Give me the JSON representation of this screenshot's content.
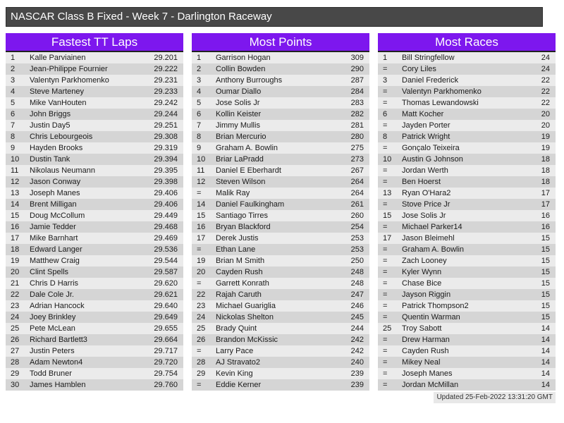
{
  "title": "NASCAR Class B Fixed - Week 7 - Darlington Raceway",
  "footer": {
    "updated": "Updated 25-Feb-2022 13:31:20 GMT"
  },
  "colors": {
    "title_bar": "#484848",
    "header_accent": "#7d17ee",
    "header_border": "#222222",
    "row_odd": "#ebebeb",
    "row_even": "#d5d5d5"
  },
  "tables": [
    {
      "title": "Fastest TT Laps",
      "columns": [
        "rank",
        "driver",
        "lap_time"
      ],
      "rows": [
        [
          "1",
          "Kalle Parviainen",
          "29.201"
        ],
        [
          "2",
          "Jean-Philippe Fournier",
          "29.222"
        ],
        [
          "3",
          "Valentyn Parkhomenko",
          "29.231"
        ],
        [
          "4",
          "Steve Marteney",
          "29.233"
        ],
        [
          "5",
          "Mike VanHouten",
          "29.242"
        ],
        [
          "6",
          "John Briggs",
          "29.244"
        ],
        [
          "7",
          "Justin Day5",
          "29.251"
        ],
        [
          "8",
          "Chris Lebourgeois",
          "29.308"
        ],
        [
          "9",
          "Hayden Brooks",
          "29.319"
        ],
        [
          "10",
          "Dustin Tank",
          "29.394"
        ],
        [
          "11",
          "Nikolaus Neumann",
          "29.395"
        ],
        [
          "12",
          "Jason Conway",
          "29.398"
        ],
        [
          "13",
          "Joseph Manes",
          "29.406"
        ],
        [
          "14",
          "Brent Milligan",
          "29.406"
        ],
        [
          "15",
          "Doug McCollum",
          "29.449"
        ],
        [
          "16",
          "Jamie Tedder",
          "29.468"
        ],
        [
          "17",
          "Mike Barnhart",
          "29.469"
        ],
        [
          "18",
          "Edward Langer",
          "29.536"
        ],
        [
          "19",
          "Matthew Craig",
          "29.544"
        ],
        [
          "20",
          "Clint Spells",
          "29.587"
        ],
        [
          "21",
          "Chris D Harris",
          "29.620"
        ],
        [
          "22",
          "Dale Cole Jr.",
          "29.621"
        ],
        [
          "23",
          "Adrian Hancock",
          "29.640"
        ],
        [
          "24",
          "Joey Brinkley",
          "29.649"
        ],
        [
          "25",
          "Pete McLean",
          "29.655"
        ],
        [
          "26",
          "Richard Bartlett3",
          "29.664"
        ],
        [
          "27",
          "Justin Peters",
          "29.717"
        ],
        [
          "28",
          "Adam Newton4",
          "29.720"
        ],
        [
          "29",
          "Todd Bruner",
          "29.754"
        ],
        [
          "30",
          "James Hamblen",
          "29.760"
        ]
      ]
    },
    {
      "title": "Most Points",
      "columns": [
        "rank",
        "driver",
        "points"
      ],
      "rows": [
        [
          "1",
          "Garrison Hogan",
          "309"
        ],
        [
          "2",
          "Collin Bowden",
          "290"
        ],
        [
          "3",
          "Anthony Burroughs",
          "287"
        ],
        [
          "4",
          "Oumar Diallo",
          "284"
        ],
        [
          "5",
          "Jose Solis Jr",
          "283"
        ],
        [
          "6",
          "Kollin Keister",
          "282"
        ],
        [
          "7",
          "Jimmy Mullis",
          "281"
        ],
        [
          "8",
          "Brian Mercurio",
          "280"
        ],
        [
          "9",
          "Graham A. Bowlin",
          "275"
        ],
        [
          "10",
          "Briar LaPradd",
          "273"
        ],
        [
          "11",
          "Daniel E Eberhardt",
          "267"
        ],
        [
          "12",
          "Steven Wilson",
          "264"
        ],
        [
          "=",
          "Malik Ray",
          "264"
        ],
        [
          "14",
          "Daniel Faulkingham",
          "261"
        ],
        [
          "15",
          "Santiago Tirres",
          "260"
        ],
        [
          "16",
          "Bryan Blackford",
          "254"
        ],
        [
          "17",
          "Derek Justis",
          "253"
        ],
        [
          "=",
          "Ethan Lane",
          "253"
        ],
        [
          "19",
          "Brian M Smith",
          "250"
        ],
        [
          "20",
          "Cayden Rush",
          "248"
        ],
        [
          "=",
          "Garrett Konrath",
          "248"
        ],
        [
          "22",
          "Rajah Caruth",
          "247"
        ],
        [
          "23",
          "Michael Guariglia",
          "246"
        ],
        [
          "24",
          "Nickolas Shelton",
          "245"
        ],
        [
          "25",
          "Brady Quint",
          "244"
        ],
        [
          "26",
          "Brandon McKissic",
          "242"
        ],
        [
          "=",
          "Larry Pace",
          "242"
        ],
        [
          "28",
          "AJ Stravato2",
          "240"
        ],
        [
          "29",
          "Kevin King",
          "239"
        ],
        [
          "=",
          "Eddie Kerner",
          "239"
        ]
      ]
    },
    {
      "title": "Most Races",
      "columns": [
        "rank",
        "driver",
        "races"
      ],
      "rows": [
        [
          "1",
          "Bill Stringfellow",
          "24"
        ],
        [
          "=",
          "Cory Liles",
          "24"
        ],
        [
          "3",
          "Daniel Frederick",
          "22"
        ],
        [
          "=",
          "Valentyn Parkhomenko",
          "22"
        ],
        [
          "=",
          "Thomas Lewandowski",
          "22"
        ],
        [
          "6",
          "Matt Kocher",
          "20"
        ],
        [
          "=",
          "Jayden Porter",
          "20"
        ],
        [
          "8",
          "Patrick Wright",
          "19"
        ],
        [
          "=",
          "Gonçalo Teixeira",
          "19"
        ],
        [
          "10",
          "Austin G Johnson",
          "18"
        ],
        [
          "=",
          "Jordan Werth",
          "18"
        ],
        [
          "=",
          "Ben Hoerst",
          "18"
        ],
        [
          "13",
          "Ryan O'Hara2",
          "17"
        ],
        [
          "=",
          "Stove Price Jr",
          "17"
        ],
        [
          "15",
          "Jose Solis Jr",
          "16"
        ],
        [
          "=",
          "Michael Parker14",
          "16"
        ],
        [
          "17",
          "Jason Bleimehl",
          "15"
        ],
        [
          "=",
          "Graham A. Bowlin",
          "15"
        ],
        [
          "=",
          "Zach Looney",
          "15"
        ],
        [
          "=",
          "Kyler Wynn",
          "15"
        ],
        [
          "=",
          "Chase Bice",
          "15"
        ],
        [
          "=",
          "Jayson Riggin",
          "15"
        ],
        [
          "=",
          "Patrick Thompson2",
          "15"
        ],
        [
          "=",
          "Quentin Warman",
          "15"
        ],
        [
          "25",
          "Troy Sabott",
          "14"
        ],
        [
          "=",
          "Drew Harman",
          "14"
        ],
        [
          "=",
          "Cayden Rush",
          "14"
        ],
        [
          "=",
          "Mikey Neal",
          "14"
        ],
        [
          "=",
          "Joseph Manes",
          "14"
        ],
        [
          "=",
          "Jordan McMillan",
          "14"
        ]
      ]
    }
  ]
}
